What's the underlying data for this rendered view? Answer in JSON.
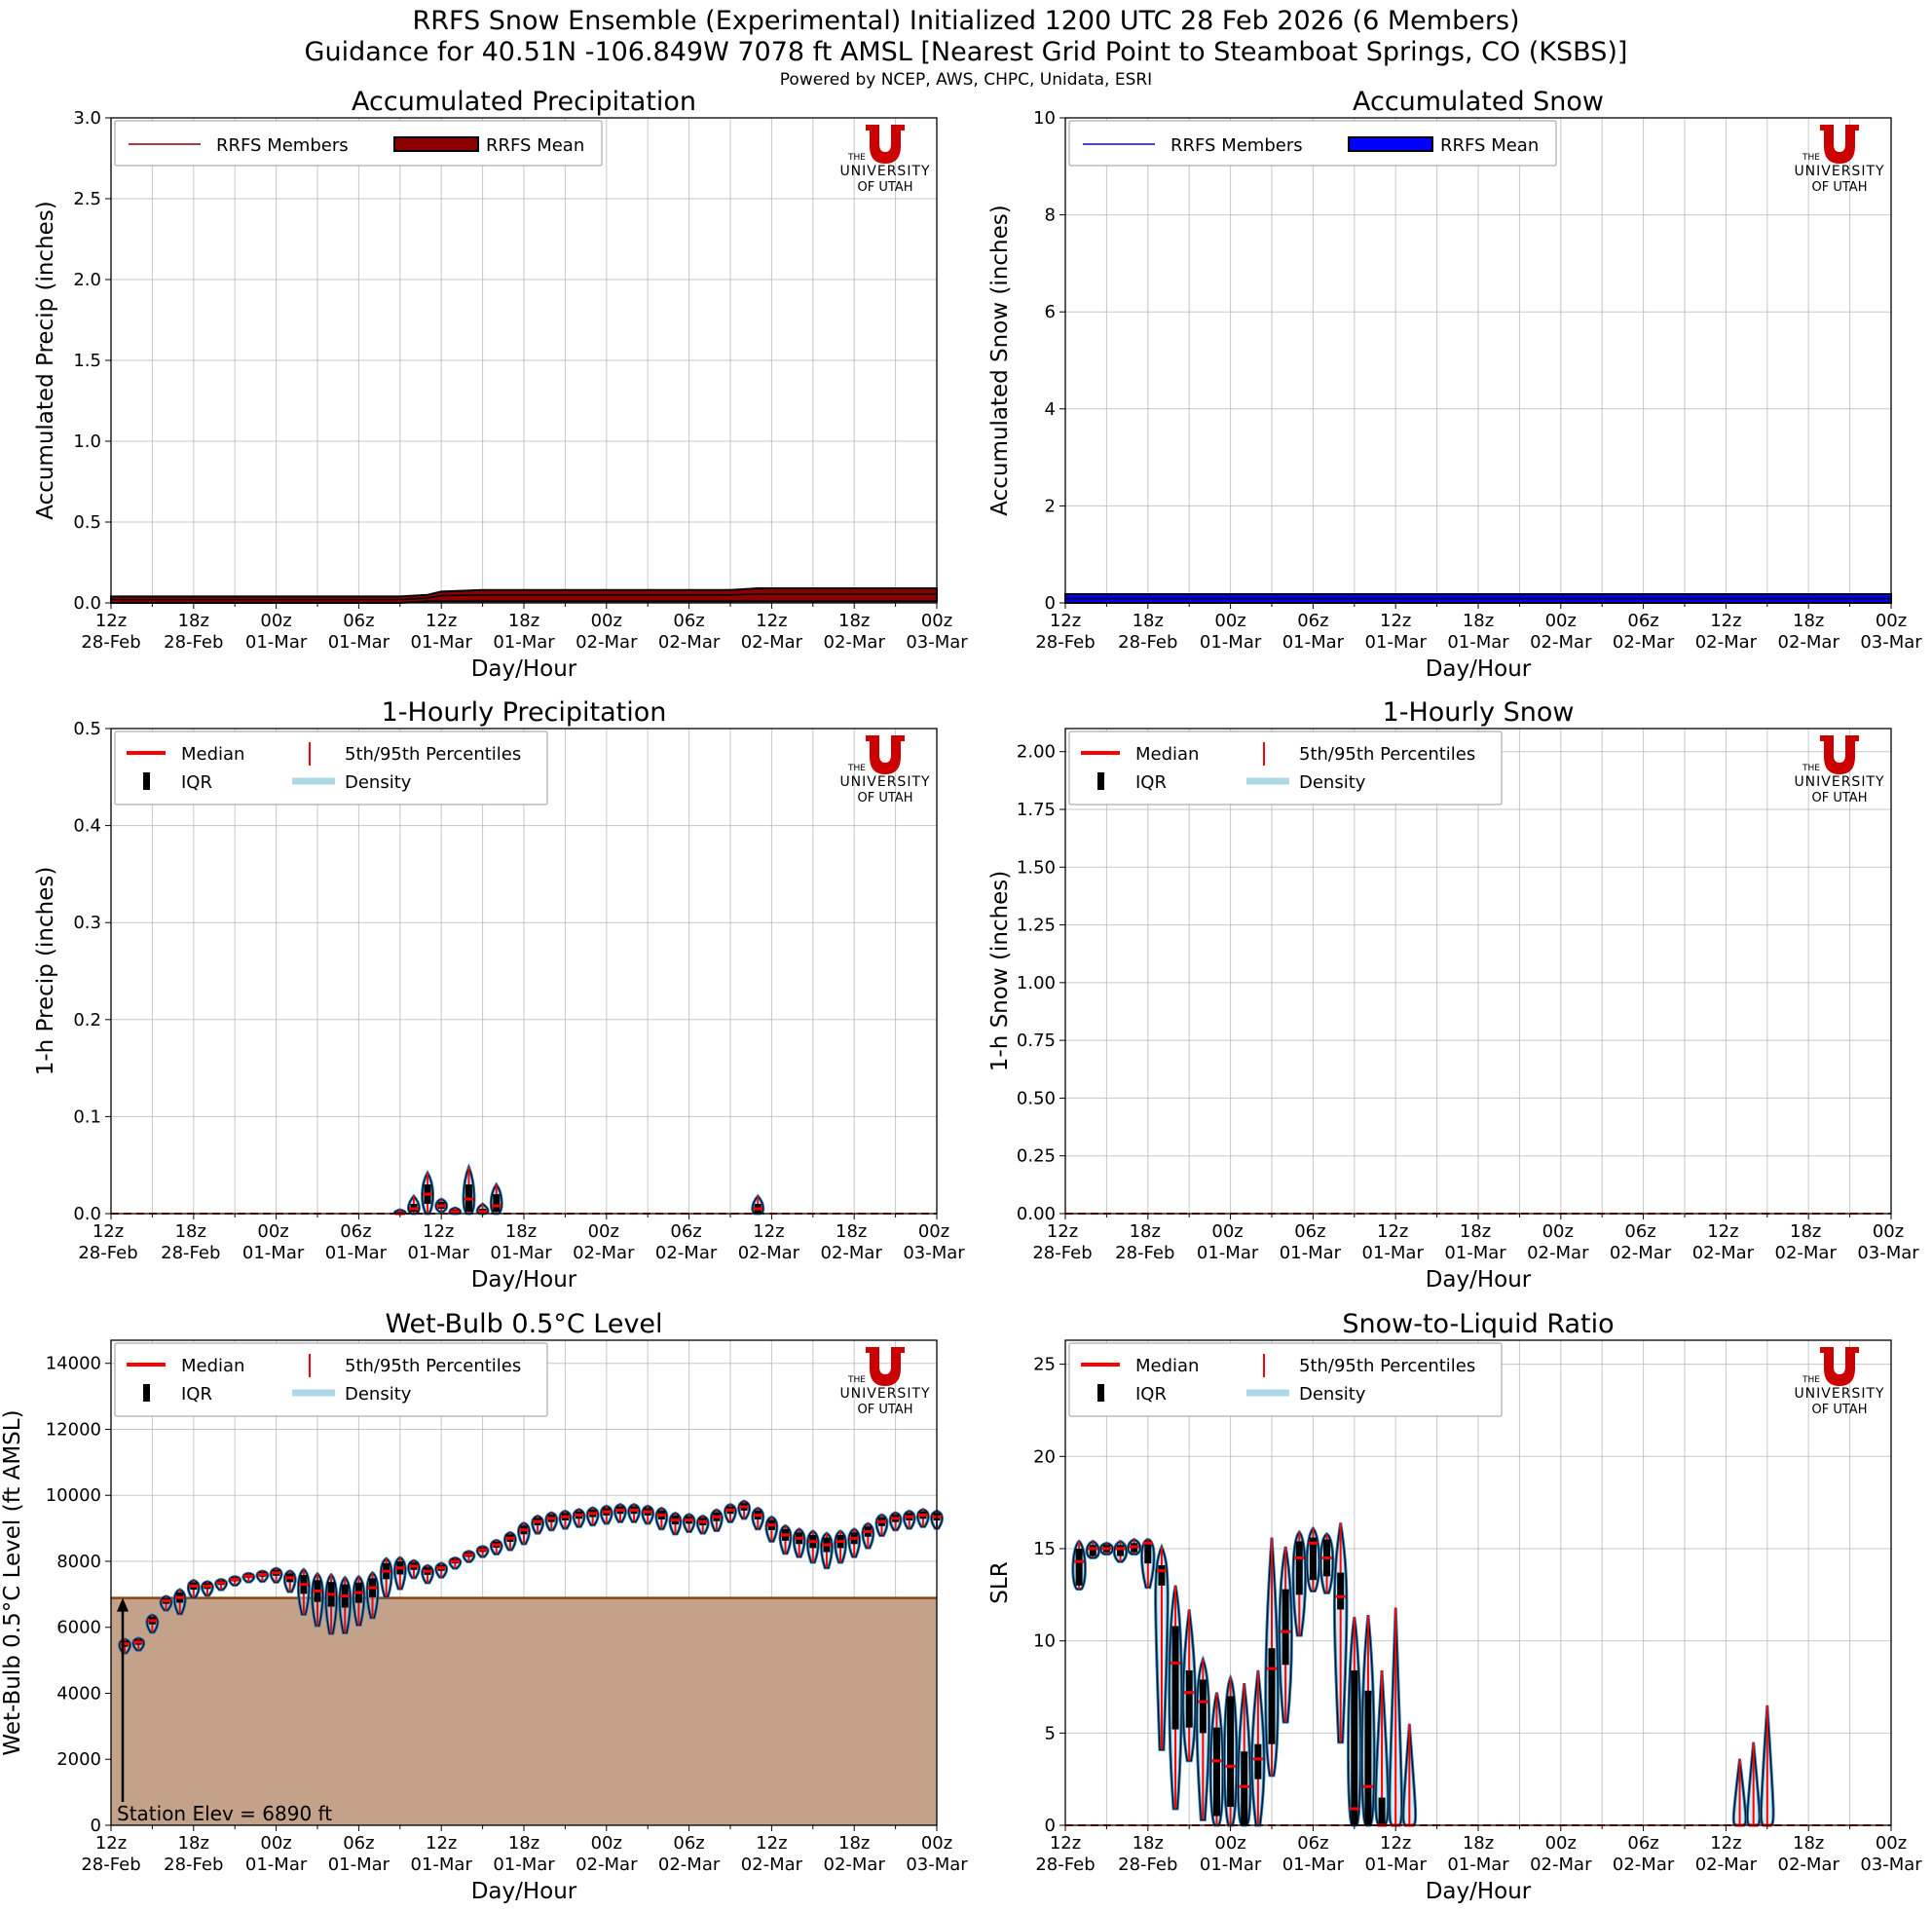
{
  "header": {
    "title_line1": "RRFS Snow Ensemble (Experimental) Initialized 1200 UTC 28 Feb 2026 (6 Members)",
    "title_line2": "Guidance for 40.51N -106.849W 7078 ft AMSL [Nearest Grid Point to Steamboat Springs, CO (KSBS)]",
    "credits": "Powered by NCEP, AWS, CHPC, Unidata, ESRI"
  },
  "logo": {
    "line_the": "THE",
    "line_university": "UNIVERSITY",
    "line_of_utah": "OF UTAH",
    "color": "#cc0000"
  },
  "colors": {
    "precip": "#8b0000",
    "snow": "#0000ff",
    "median": "#ff0000",
    "violin": "#1f77b4",
    "density": "#add8e6",
    "terrain": "#c4a189",
    "terrain_line": "#8b4513"
  },
  "x_ticks": [
    {
      "top": "12z",
      "bottom": "28-Feb"
    },
    {
      "top": "18z",
      "bottom": "28-Feb"
    },
    {
      "top": "00z",
      "bottom": "01-Mar"
    },
    {
      "top": "06z",
      "bottom": "01-Mar"
    },
    {
      "top": "12z",
      "bottom": "01-Mar"
    },
    {
      "top": "18z",
      "bottom": "01-Mar"
    },
    {
      "top": "00z",
      "bottom": "02-Mar"
    },
    {
      "top": "06z",
      "bottom": "02-Mar"
    },
    {
      "top": "12z",
      "bottom": "02-Mar"
    },
    {
      "top": "18z",
      "bottom": "02-Mar"
    },
    {
      "top": "00z",
      "bottom": "03-Mar"
    }
  ],
  "chart_data": [
    {
      "id": "acc_precip",
      "type": "area",
      "title": "Accumulated Precipitation",
      "xlabel": "Day/Hour",
      "ylabel": "Accumulated Precip (inches)",
      "ylim": [
        0,
        3.0
      ],
      "yticks": [
        "0.0",
        "0.5",
        "1.0",
        "1.5",
        "2.0",
        "2.5",
        "3.0"
      ],
      "xlim_hours": [
        0,
        60
      ],
      "grid": true,
      "legend_position": "top-left",
      "legend": [
        "RRFS Members",
        "RRFS Mean"
      ],
      "members": {
        "hours": [
          0,
          21,
          23,
          24,
          27,
          33,
          45,
          47,
          48,
          60
        ],
        "min": [
          0.0,
          0.0,
          0.01,
          0.01,
          0.01,
          0.01,
          0.01,
          0.01,
          0.01,
          0.01
        ],
        "max": [
          0.04,
          0.04,
          0.05,
          0.07,
          0.08,
          0.08,
          0.08,
          0.09,
          0.09,
          0.09
        ]
      },
      "mean": {
        "hours": [
          0,
          21,
          23,
          24,
          27,
          33,
          45,
          47,
          48,
          60
        ],
        "values": [
          0.02,
          0.02,
          0.03,
          0.045,
          0.05,
          0.05,
          0.05,
          0.055,
          0.055,
          0.055
        ]
      }
    },
    {
      "id": "acc_snow",
      "type": "area",
      "title": "Accumulated Snow",
      "xlabel": "Day/Hour",
      "ylabel": "Accumulated Snow (inches)",
      "ylim": [
        0,
        10
      ],
      "yticks": [
        "0",
        "2",
        "4",
        "6",
        "8",
        "10"
      ],
      "xlim_hours": [
        0,
        60
      ],
      "grid": true,
      "legend_position": "top-left",
      "legend": [
        "RRFS Members",
        "RRFS Mean"
      ],
      "members": {
        "hours": [
          0,
          60
        ],
        "min": [
          0.0,
          0.0
        ],
        "max": [
          0.18,
          0.18
        ]
      },
      "mean": {
        "hours": [
          0,
          60
        ],
        "values": [
          0.09,
          0.09
        ]
      }
    },
    {
      "id": "hourly_precip",
      "type": "violin",
      "title": "1-Hourly Precipitation",
      "xlabel": "Day/Hour",
      "ylabel": "1-h Precip (inches)",
      "ylim": [
        0,
        0.5
      ],
      "yticks": [
        "0.0",
        "0.1",
        "0.2",
        "0.3",
        "0.4",
        "0.5"
      ],
      "xlim_hours": [
        0,
        60
      ],
      "grid": true,
      "legend_position": "top-left",
      "legend": [
        "Median",
        "5th/95th Percentiles",
        "IQR",
        "Density"
      ],
      "baseline_median": 0.0,
      "violins": [
        {
          "hour": 21,
          "p5": 0.0,
          "q1": 0.0,
          "median": 0.0,
          "q3": 0.002,
          "p95": 0.004
        },
        {
          "hour": 22,
          "p5": 0.0,
          "q1": 0.002,
          "median": 0.005,
          "q3": 0.01,
          "p95": 0.018
        },
        {
          "hour": 23,
          "p5": 0.0,
          "q1": 0.01,
          "median": 0.02,
          "q3": 0.03,
          "p95": 0.042
        },
        {
          "hour": 24,
          "p5": 0.002,
          "q1": 0.005,
          "median": 0.008,
          "q3": 0.012,
          "p95": 0.015
        },
        {
          "hour": 25,
          "p5": 0.0,
          "q1": 0.0,
          "median": 0.002,
          "q3": 0.004,
          "p95": 0.006
        },
        {
          "hour": 26,
          "p5": 0.0,
          "q1": 0.002,
          "median": 0.015,
          "q3": 0.03,
          "p95": 0.048
        },
        {
          "hour": 27,
          "p5": 0.0,
          "q1": 0.0,
          "median": 0.002,
          "q3": 0.005,
          "p95": 0.01
        },
        {
          "hour": 28,
          "p5": 0.0,
          "q1": 0.002,
          "median": 0.008,
          "q3": 0.02,
          "p95": 0.03
        },
        {
          "hour": 47,
          "p5": 0.0,
          "q1": 0.0,
          "median": 0.005,
          "q3": 0.01,
          "p95": 0.018
        }
      ]
    },
    {
      "id": "hourly_snow",
      "type": "violin",
      "title": "1-Hourly Snow",
      "xlabel": "Day/Hour",
      "ylabel": "1-h Snow (inches)",
      "ylim": [
        0,
        2.1
      ],
      "yticks": [
        "0.00",
        "0.25",
        "0.50",
        "0.75",
        "1.00",
        "1.25",
        "1.50",
        "1.75",
        "2.00"
      ],
      "ytick_values": [
        0,
        0.25,
        0.5,
        0.75,
        1.0,
        1.25,
        1.5,
        1.75,
        2.0
      ],
      "xlim_hours": [
        0,
        60
      ],
      "grid": true,
      "legend_position": "top-left",
      "legend": [
        "Median",
        "5th/95th Percentiles",
        "IQR",
        "Density"
      ],
      "baseline_median": 0.0,
      "violins": []
    },
    {
      "id": "wetbulb",
      "type": "violin",
      "title": "Wet-Bulb 0.5°C Level",
      "xlabel": "Day/Hour",
      "ylabel": "Wet-Bulb 0.5°C Level (ft AMSL)",
      "ylim": [
        0,
        14700
      ],
      "yticks": [
        "0",
        "2000",
        "4000",
        "6000",
        "8000",
        "10000",
        "12000",
        "14000"
      ],
      "ytick_values": [
        0,
        2000,
        4000,
        6000,
        8000,
        10000,
        12000,
        14000
      ],
      "xlim_hours": [
        0,
        60
      ],
      "grid": true,
      "legend_position": "top-left",
      "legend": [
        "Median",
        "5th/95th Percentiles",
        "IQR",
        "Density"
      ],
      "station_elev_ft": 6890,
      "station_label": "Station Elev = 6890 ft",
      "medians": [
        6000,
        5500,
        5550,
        6200,
        6800,
        6900,
        7250,
        7250,
        7350,
        7450,
        7550,
        7600,
        7650,
        7500,
        7300,
        7100,
        7000,
        6950,
        7050,
        7200,
        7700,
        7800,
        7850,
        7700,
        7800,
        8000,
        8200,
        8350,
        8500,
        8700,
        8950,
        9200,
        9300,
        9350,
        9400,
        9450,
        9500,
        9550,
        9550,
        9500,
        9400,
        9250,
        9250,
        9200,
        9350,
        9550,
        9650,
        9400,
        9100,
        8800,
        8700,
        8600,
        8500,
        8600,
        8700,
        8900,
        9200,
        9300,
        9350,
        9400,
        9350
      ],
      "spreads": [
        600,
        400,
        350,
        500,
        400,
        700,
        500,
        400,
        300,
        250,
        250,
        300,
        400,
        600,
        1300,
        1500,
        1700,
        1600,
        1400,
        1300,
        1100,
        900,
        500,
        500,
        400,
        300,
        300,
        300,
        400,
        500,
        600,
        500,
        500,
        500,
        500,
        500,
        500,
        500,
        500,
        500,
        600,
        600,
        500,
        500,
        600,
        500,
        500,
        600,
        700,
        800,
        800,
        900,
        1000,
        900,
        800,
        700,
        600,
        500,
        500,
        500,
        500
      ]
    },
    {
      "id": "slr",
      "type": "violin",
      "title": "Snow-to-Liquid Ratio",
      "xlabel": "Day/Hour",
      "ylabel": "SLR",
      "ylim": [
        0,
        26.3
      ],
      "yticks": [
        "0",
        "5",
        "10",
        "15",
        "20",
        "25"
      ],
      "ytick_values": [
        0,
        5,
        10,
        15,
        20,
        25
      ],
      "xlim_hours": [
        0,
        60
      ],
      "grid": true,
      "legend_position": "top-left",
      "legend": [
        "Median",
        "5th/95th Percentiles",
        "IQR",
        "Density"
      ],
      "baseline_median": 0.0,
      "violins": [
        {
          "hour": 1,
          "p5": 12.8,
          "q1": 13.0,
          "median": 14.3,
          "q3": 15.0,
          "p95": 15.4
        },
        {
          "hour": 2,
          "p5": 14.5,
          "q1": 14.6,
          "median": 15.0,
          "q3": 15.2,
          "p95": 15.4
        },
        {
          "hour": 3,
          "p5": 14.7,
          "q1": 14.8,
          "median": 15.0,
          "q3": 15.2,
          "p95": 15.3
        },
        {
          "hour": 4,
          "p5": 14.3,
          "q1": 14.6,
          "median": 15.0,
          "q3": 15.2,
          "p95": 15.4
        },
        {
          "hour": 5,
          "p5": 14.7,
          "q1": 14.8,
          "median": 15.1,
          "q3": 15.3,
          "p95": 15.5
        },
        {
          "hour": 6,
          "p5": 12.9,
          "q1": 14.2,
          "median": 15.3,
          "q3": 15.4,
          "p95": 15.5
        },
        {
          "hour": 7,
          "p5": 4.1,
          "q1": 13.0,
          "median": 13.8,
          "q3": 14.1,
          "p95": 15.1
        },
        {
          "hour": 8,
          "p5": 0.9,
          "q1": 5.2,
          "median": 8.8,
          "q3": 10.8,
          "p95": 13.0
        },
        {
          "hour": 9,
          "p5": 3.5,
          "q1": 5.3,
          "median": 7.2,
          "q3": 8.4,
          "p95": 11.7
        },
        {
          "hour": 10,
          "p5": 0.3,
          "q1": 5.0,
          "median": 6.7,
          "q3": 7.9,
          "p95": 9.0
        },
        {
          "hour": 11,
          "p5": 0.0,
          "q1": 0.5,
          "median": 3.5,
          "q3": 5.3,
          "p95": 7.2
        },
        {
          "hour": 12,
          "p5": 0.0,
          "q1": 1.0,
          "median": 3.2,
          "q3": 7.0,
          "p95": 8.0
        },
        {
          "hour": 13,
          "p5": 0.0,
          "q1": 0.0,
          "median": 2.1,
          "q3": 4.0,
          "p95": 7.7
        },
        {
          "hour": 14,
          "p5": 0.0,
          "q1": 2.5,
          "median": 3.6,
          "q3": 4.4,
          "p95": 8.4
        },
        {
          "hour": 15,
          "p5": 2.7,
          "q1": 4.4,
          "median": 8.5,
          "q3": 9.6,
          "p95": 15.6
        },
        {
          "hour": 16,
          "p5": 5.6,
          "q1": 8.7,
          "median": 10.5,
          "q3": 12.8,
          "p95": 15.1
        },
        {
          "hour": 17,
          "p5": 10.3,
          "q1": 12.5,
          "median": 14.5,
          "q3": 15.4,
          "p95": 15.9
        },
        {
          "hour": 18,
          "p5": 12.7,
          "q1": 13.3,
          "median": 15.3,
          "q3": 15.6,
          "p95": 16.1
        },
        {
          "hour": 19,
          "p5": 12.6,
          "q1": 13.5,
          "median": 14.5,
          "q3": 15.5,
          "p95": 15.8
        },
        {
          "hour": 20,
          "p5": 4.5,
          "q1": 11.7,
          "median": 12.4,
          "q3": 13.7,
          "p95": 16.4
        },
        {
          "hour": 21,
          "p5": 0.0,
          "q1": 0.0,
          "median": 0.9,
          "q3": 8.4,
          "p95": 11.3
        },
        {
          "hour": 22,
          "p5": 0.0,
          "q1": 0.0,
          "median": 2.1,
          "q3": 7.3,
          "p95": 11.4
        },
        {
          "hour": 23,
          "p5": 0.0,
          "q1": 0.0,
          "median": 0.0,
          "q3": 1.5,
          "p95": 8.4
        },
        {
          "hour": 24,
          "p5": 0.0,
          "q1": 0.0,
          "median": 0.0,
          "q3": 0.0,
          "p95": 11.8
        },
        {
          "hour": 25,
          "p5": 0.0,
          "q1": 0.0,
          "median": 0.0,
          "q3": 0.0,
          "p95": 5.5
        },
        {
          "hour": 49,
          "p5": 0.0,
          "q1": 0.0,
          "median": 0.0,
          "q3": 0.0,
          "p95": 3.6
        },
        {
          "hour": 50,
          "p5": 0.0,
          "q1": 0.0,
          "median": 0.0,
          "q3": 0.0,
          "p95": 4.5
        },
        {
          "hour": 51,
          "p5": 0.0,
          "q1": 0.0,
          "median": 0.0,
          "q3": 0.0,
          "p95": 6.5
        }
      ]
    }
  ]
}
